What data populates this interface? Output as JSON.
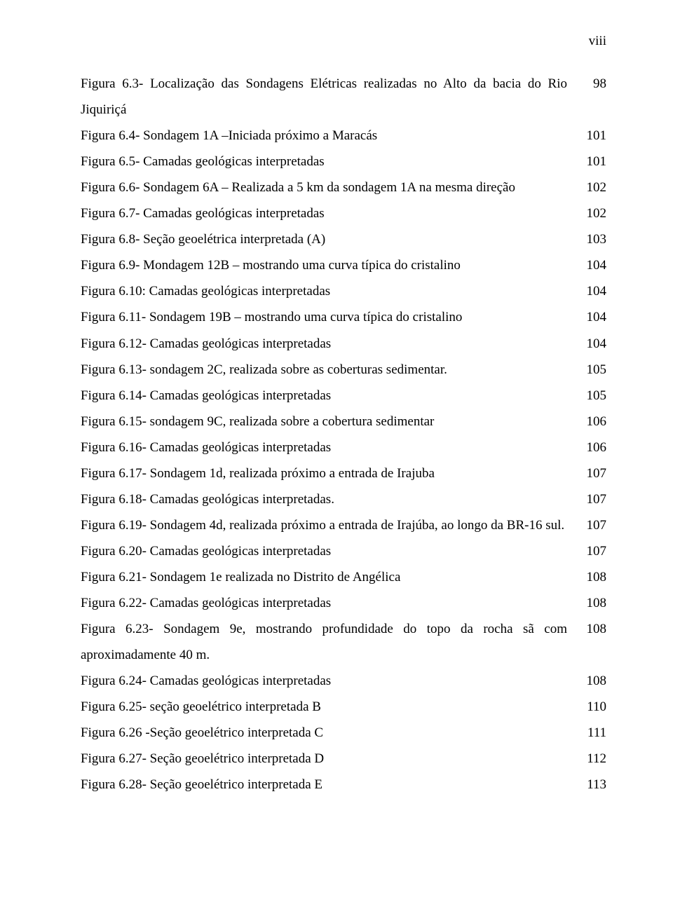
{
  "pageNumber": "viii",
  "entries": [
    {
      "text": "Figura 6.3- Localização das Sondagens Elétricas realizadas no Alto da bacia do Rio Jiquiriçá",
      "page": "98",
      "multiline": true
    },
    {
      "text": "Figura 6.4- Sondagem 1A –Iniciada próximo a Maracás",
      "page": "101"
    },
    {
      "text": "Figura 6.5- Camadas geológicas interpretadas",
      "page": "101"
    },
    {
      "text": "Figura 6.6- Sondagem 6A – Realizada a 5 km da  sondagem 1A na mesma direção",
      "page": "102"
    },
    {
      "text": "Figura 6.7- Camadas geológicas interpretadas",
      "page": "102"
    },
    {
      "text": "Figura 6.8- Seção geoelétrica interpretada (A)",
      "page": "103"
    },
    {
      "text": "Figura 6.9- Mondagem 12B – mostrando uma curva típica do cristalino",
      "page": "104"
    },
    {
      "text": "Figura 6.10: Camadas geológicas interpretadas",
      "page": "104"
    },
    {
      "text": "Figura 6.11- Sondagem 19B – mostrando uma curva típica do cristalino",
      "page": "104"
    },
    {
      "text": "Figura 6.12- Camadas geológicas interpretadas",
      "page": "104"
    },
    {
      "text": "Figura 6.13- sondagem 2C, realizada sobre as coberturas sedimentar.",
      "page": "105"
    },
    {
      "text": "Figura 6.14- Camadas geológicas interpretadas",
      "page": "105"
    },
    {
      "text": "Figura 6.15- sondagem 9C, realizada sobre a cobertura sedimentar",
      "page": "106"
    },
    {
      "text": "Figura 6.16- Camadas geológicas interpretadas",
      "page": "106"
    },
    {
      "text": "Figura 6.17- Sondagem 1d, realizada próximo a entrada de Irajuba",
      "page": "107"
    },
    {
      "text": "Figura 6.18- Camadas geológicas interpretadas.",
      "page": "107"
    },
    {
      "text": "Figura 6.19- Sondagem 4d, realizada próximo a entrada de Irajúba, ao longo da BR-16 sul.",
      "page": "107",
      "multiline": true
    },
    {
      "text": "Figura 6.20- Camadas geológicas interpretadas",
      "page": "107"
    },
    {
      "text": "Figura 6.21- Sondagem 1e realizada no Distrito de Angélica",
      "page": "108"
    },
    {
      "text": "Figura 6.22- Camadas geológicas interpretadas",
      "page": "108"
    },
    {
      "text": "Figura 6.23- Sondagem 9e, mostrando profundidade do topo da rocha sã com aproximadamente 40 m.",
      "page": "108",
      "multiline": true
    },
    {
      "text": "Figura 6.24- Camadas geológicas interpretadas",
      "page": "108"
    },
    {
      "text": "Figura 6.25- seção geoelétrico interpretada B",
      "page": "110"
    },
    {
      "text": "Figura 6.26 -Seção geoelétrico interpretada C",
      "page": "111"
    },
    {
      "text": "Figura 6.27- Seção geoelétrico interpretada D",
      "page": "112"
    },
    {
      "text": "Figura 6.28- Seção geoelétrico interpretada E",
      "page": "113"
    }
  ]
}
